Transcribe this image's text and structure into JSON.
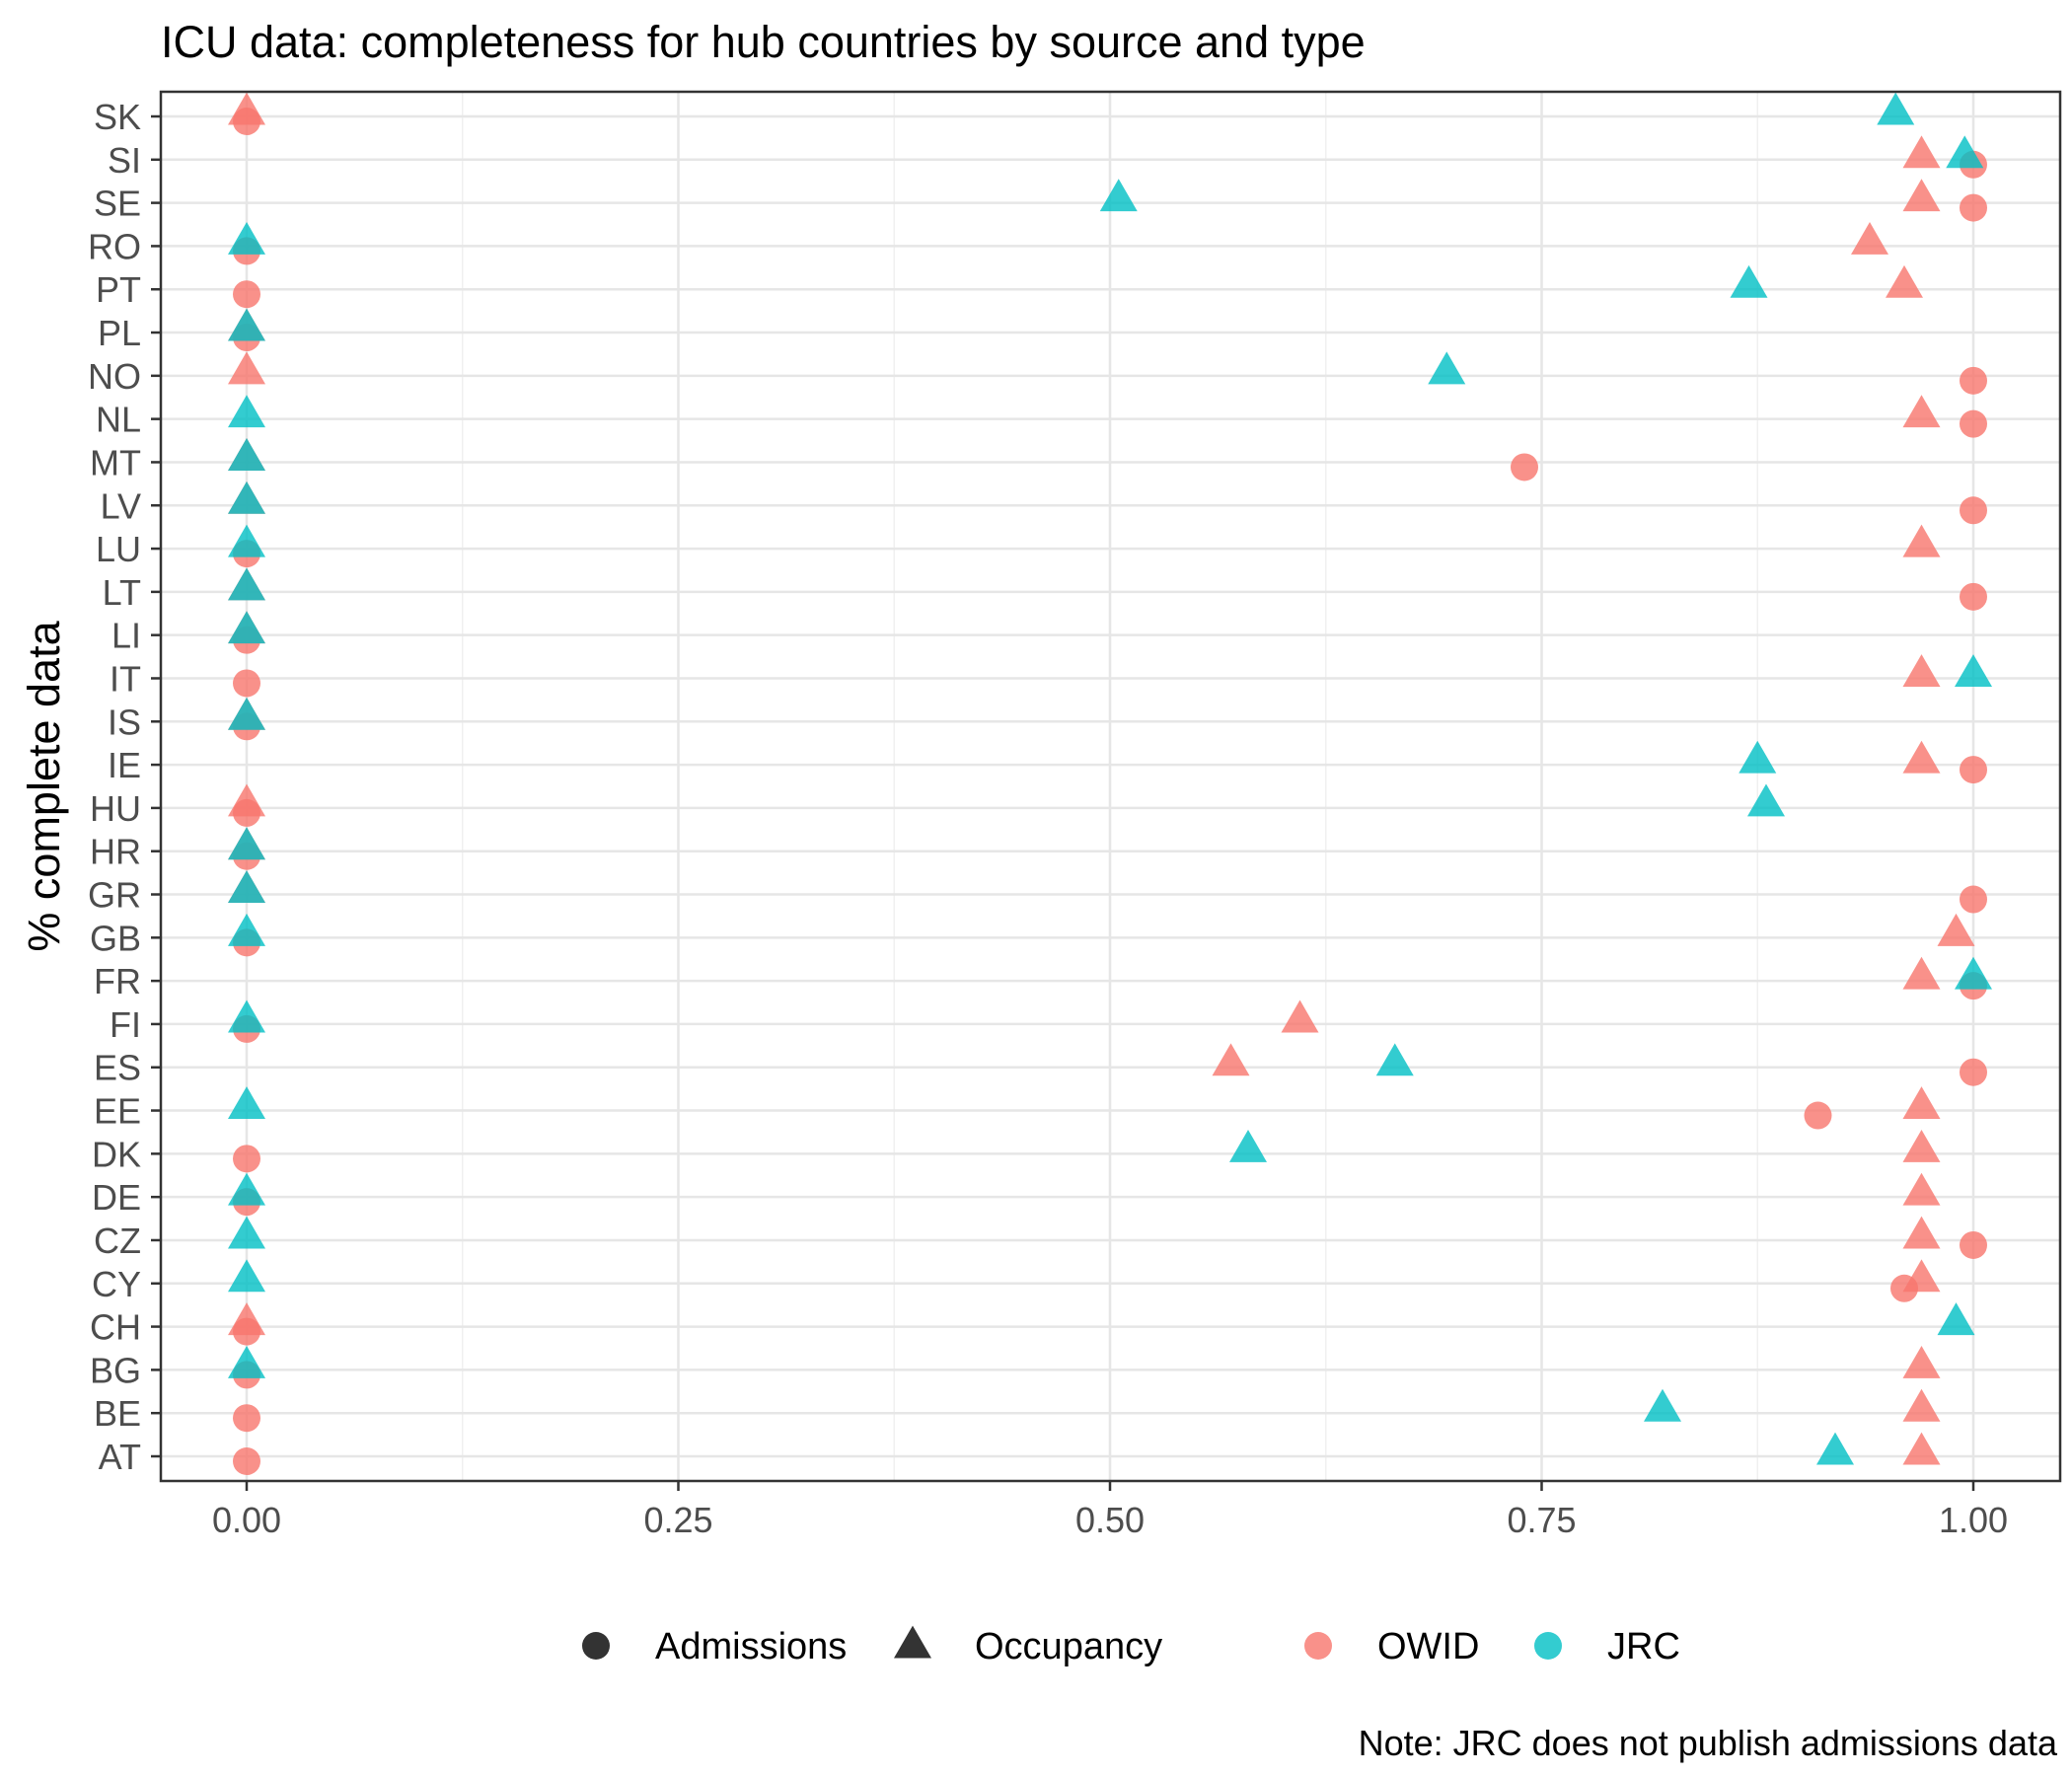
{
  "chart_data": {
    "type": "scatter",
    "title": "ICU data: completeness for hub countries by source and type",
    "xlabel": "",
    "ylabel": "% complete data",
    "caption": "Note: JRC does not publish admissions data",
    "xlim": [
      -0.05,
      1.05
    ],
    "xticks": [
      "0.00",
      "0.25",
      "0.50",
      "0.75",
      "1.00"
    ],
    "xtick_values": [
      0,
      0.25,
      0.5,
      0.75,
      1.0
    ],
    "grid": true,
    "legend_position": "bottom",
    "categories": [
      "AT",
      "BE",
      "BG",
      "CH",
      "CY",
      "CZ",
      "DE",
      "DK",
      "EE",
      "ES",
      "FI",
      "FR",
      "GB",
      "GR",
      "HR",
      "HU",
      "IE",
      "IS",
      "IT",
      "LI",
      "LT",
      "LU",
      "LV",
      "MT",
      "NL",
      "NO",
      "PL",
      "PT",
      "RO",
      "SE",
      "SI",
      "SK"
    ],
    "legend": {
      "shapes": [
        {
          "label": "Admissions",
          "shape": "circle"
        },
        {
          "label": "Occupancy",
          "shape": "triangle"
        }
      ],
      "colors": [
        {
          "label": "OWID",
          "color": "#F8766D"
        },
        {
          "label": "JRC",
          "color": "#00BFC4"
        }
      ]
    },
    "colors": {
      "OWID": "#F8766D",
      "JRC": "#00BFC4"
    },
    "series": [
      {
        "name": "OWID",
        "type": "Admissions",
        "shape": "circle",
        "color": "#F8766D",
        "points": [
          {
            "y": "AT",
            "x": 0
          },
          {
            "y": "BE",
            "x": 0
          },
          {
            "y": "BG",
            "x": 0
          },
          {
            "y": "CH",
            "x": 0
          },
          {
            "y": "CY",
            "x": 0.96
          },
          {
            "y": "CZ",
            "x": 1.0
          },
          {
            "y": "DE",
            "x": 0
          },
          {
            "y": "DK",
            "x": 0
          },
          {
            "y": "EE",
            "x": 0.91
          },
          {
            "y": "ES",
            "x": 1.0
          },
          {
            "y": "FI",
            "x": 0
          },
          {
            "y": "FR",
            "x": 1.0
          },
          {
            "y": "GB",
            "x": 0
          },
          {
            "y": "GR",
            "x": 1.0
          },
          {
            "y": "HR",
            "x": 0
          },
          {
            "y": "HU",
            "x": 0
          },
          {
            "y": "IE",
            "x": 1.0
          },
          {
            "y": "IS",
            "x": 0
          },
          {
            "y": "IT",
            "x": 0
          },
          {
            "y": "LI",
            "x": 0
          },
          {
            "y": "LT",
            "x": 1.0
          },
          {
            "y": "LU",
            "x": 0
          },
          {
            "y": "LV",
            "x": 1.0
          },
          {
            "y": "MT",
            "x": 0.74
          },
          {
            "y": "NL",
            "x": 1.0
          },
          {
            "y": "NO",
            "x": 1.0
          },
          {
            "y": "PL",
            "x": 0
          },
          {
            "y": "PT",
            "x": 0
          },
          {
            "y": "RO",
            "x": 0
          },
          {
            "y": "SE",
            "x": 1.0
          },
          {
            "y": "SI",
            "x": 1.0
          },
          {
            "y": "SK",
            "x": 0
          }
        ]
      },
      {
        "name": "OWID",
        "type": "Occupancy",
        "shape": "triangle",
        "color": "#F8766D",
        "points": [
          {
            "y": "AT",
            "x": 0.97
          },
          {
            "y": "BE",
            "x": 0.97
          },
          {
            "y": "BG",
            "x": 0.97
          },
          {
            "y": "CH",
            "x": 0
          },
          {
            "y": "CY",
            "x": 0.97
          },
          {
            "y": "CZ",
            "x": 0.97
          },
          {
            "y": "DE",
            "x": 0.97
          },
          {
            "y": "DK",
            "x": 0.97
          },
          {
            "y": "EE",
            "x": 0.97
          },
          {
            "y": "ES",
            "x": 0.57
          },
          {
            "y": "FI",
            "x": 0.61
          },
          {
            "y": "FR",
            "x": 0.97
          },
          {
            "y": "GB",
            "x": 0.99
          },
          {
            "y": "GR",
            "x": 0
          },
          {
            "y": "HR",
            "x": 0
          },
          {
            "y": "HU",
            "x": 0
          },
          {
            "y": "IE",
            "x": 0.97
          },
          {
            "y": "IS",
            "x": 0
          },
          {
            "y": "IT",
            "x": 0.97
          },
          {
            "y": "LI",
            "x": 0
          },
          {
            "y": "LT",
            "x": 0
          },
          {
            "y": "LU",
            "x": 0.97
          },
          {
            "y": "LV",
            "x": 0
          },
          {
            "y": "MT",
            "x": 0
          },
          {
            "y": "NL",
            "x": 0.97
          },
          {
            "y": "NO",
            "x": 0
          },
          {
            "y": "PL",
            "x": 0
          },
          {
            "y": "PT",
            "x": 0.96
          },
          {
            "y": "RO",
            "x": 0.94
          },
          {
            "y": "SE",
            "x": 0.97
          },
          {
            "y": "SI",
            "x": 0.97
          },
          {
            "y": "SK",
            "x": 0
          }
        ]
      },
      {
        "name": "JRC",
        "type": "Occupancy",
        "shape": "triangle",
        "color": "#00BFC4",
        "points": [
          {
            "y": "AT",
            "x": 0.92
          },
          {
            "y": "BE",
            "x": 0.82
          },
          {
            "y": "BG",
            "x": 0
          },
          {
            "y": "CH",
            "x": 0.99
          },
          {
            "y": "CY",
            "x": 0
          },
          {
            "y": "CZ",
            "x": 0
          },
          {
            "y": "DE",
            "x": 0
          },
          {
            "y": "DK",
            "x": 0.58
          },
          {
            "y": "EE",
            "x": 0
          },
          {
            "y": "ES",
            "x": 0.665
          },
          {
            "y": "FI",
            "x": 0
          },
          {
            "y": "FR",
            "x": 1.0
          },
          {
            "y": "GB",
            "x": 0
          },
          {
            "y": "GR",
            "x": 0
          },
          {
            "y": "HR",
            "x": 0
          },
          {
            "y": "HU",
            "x": 0.88
          },
          {
            "y": "IE",
            "x": 0.875
          },
          {
            "y": "IS",
            "x": 0
          },
          {
            "y": "IT",
            "x": 1.0
          },
          {
            "y": "LI",
            "x": 0
          },
          {
            "y": "LT",
            "x": 0
          },
          {
            "y": "LU",
            "x": 0
          },
          {
            "y": "LV",
            "x": 0
          },
          {
            "y": "MT",
            "x": 0
          },
          {
            "y": "NL",
            "x": 0
          },
          {
            "y": "NO",
            "x": 0.695
          },
          {
            "y": "PL",
            "x": 0
          },
          {
            "y": "PT",
            "x": 0.87
          },
          {
            "y": "RO",
            "x": 0
          },
          {
            "y": "SE",
            "x": 0.505
          },
          {
            "y": "SI",
            "x": 0.995
          },
          {
            "y": "SK",
            "x": 0.955
          }
        ]
      }
    ]
  }
}
